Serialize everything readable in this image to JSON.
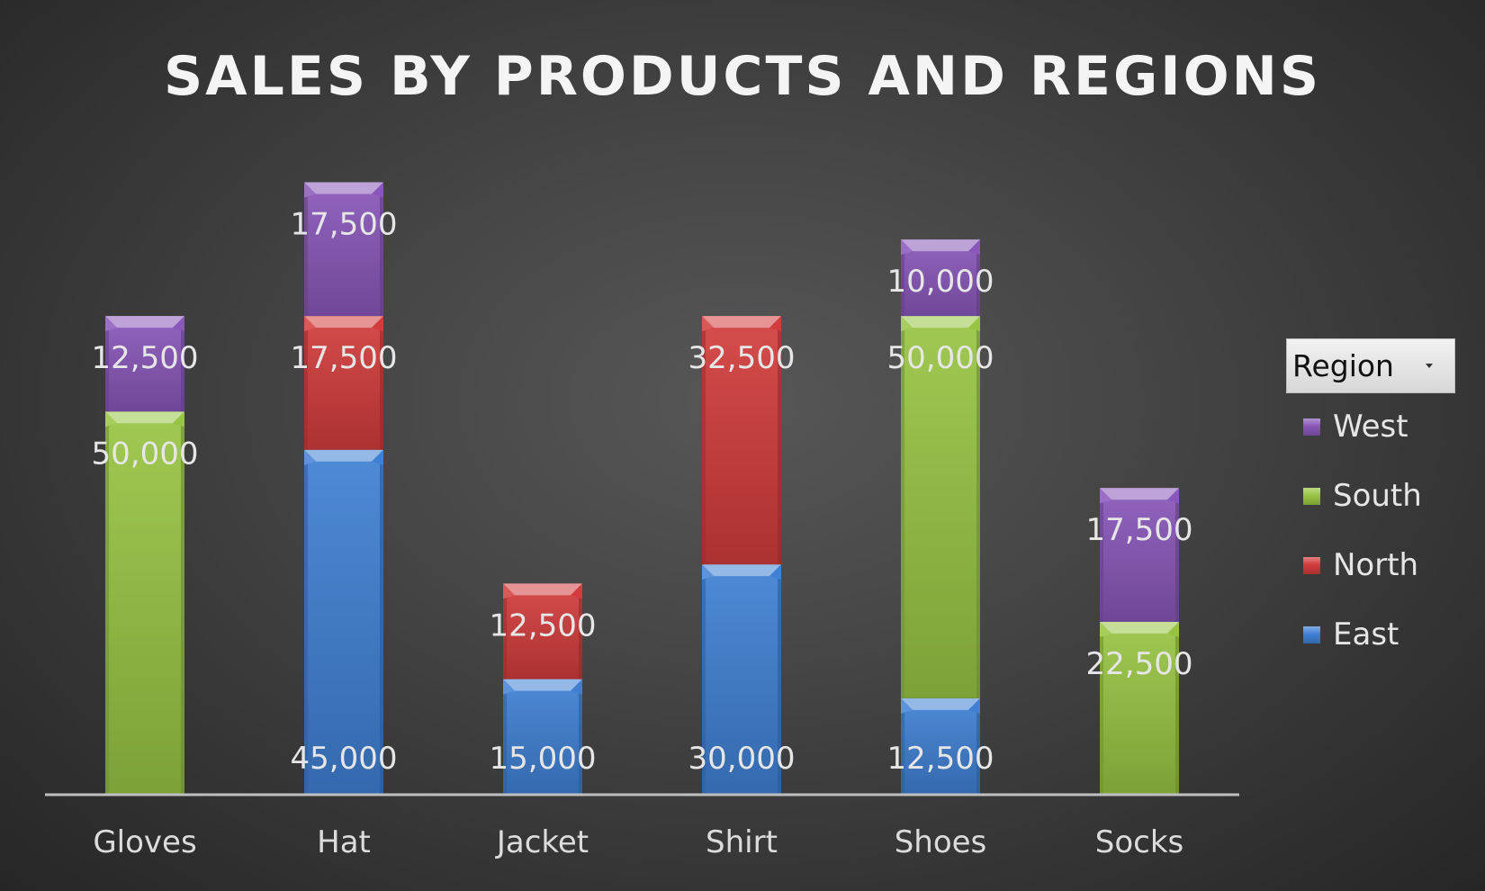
{
  "chart_data": {
    "type": "bar",
    "stacked": true,
    "title": "SALES BY PRODUCTS AND REGIONS",
    "categories": [
      "Gloves",
      "Hat",
      "Jacket",
      "Shirt",
      "Shoes",
      "Socks"
    ],
    "series": [
      {
        "name": "East",
        "color": "#3f80d4",
        "values": [
          null,
          45000,
          15000,
          30000,
          12500,
          null
        ]
      },
      {
        "name": "North",
        "color": "#d23c3c",
        "values": [
          null,
          17500,
          12500,
          32500,
          null,
          null
        ]
      },
      {
        "name": "South",
        "color": "#98c443",
        "values": [
          50000,
          null,
          null,
          null,
          50000,
          22500
        ]
      },
      {
        "name": "West",
        "color": "#8957b9",
        "values": [
          12500,
          17500,
          null,
          null,
          10000,
          17500
        ]
      }
    ],
    "ylim": [
      0,
      85000
    ],
    "legend": {
      "title": "Region",
      "position": "right",
      "order": [
        "West",
        "South",
        "North",
        "East"
      ]
    },
    "axis_visible": false,
    "grid": false
  }
}
